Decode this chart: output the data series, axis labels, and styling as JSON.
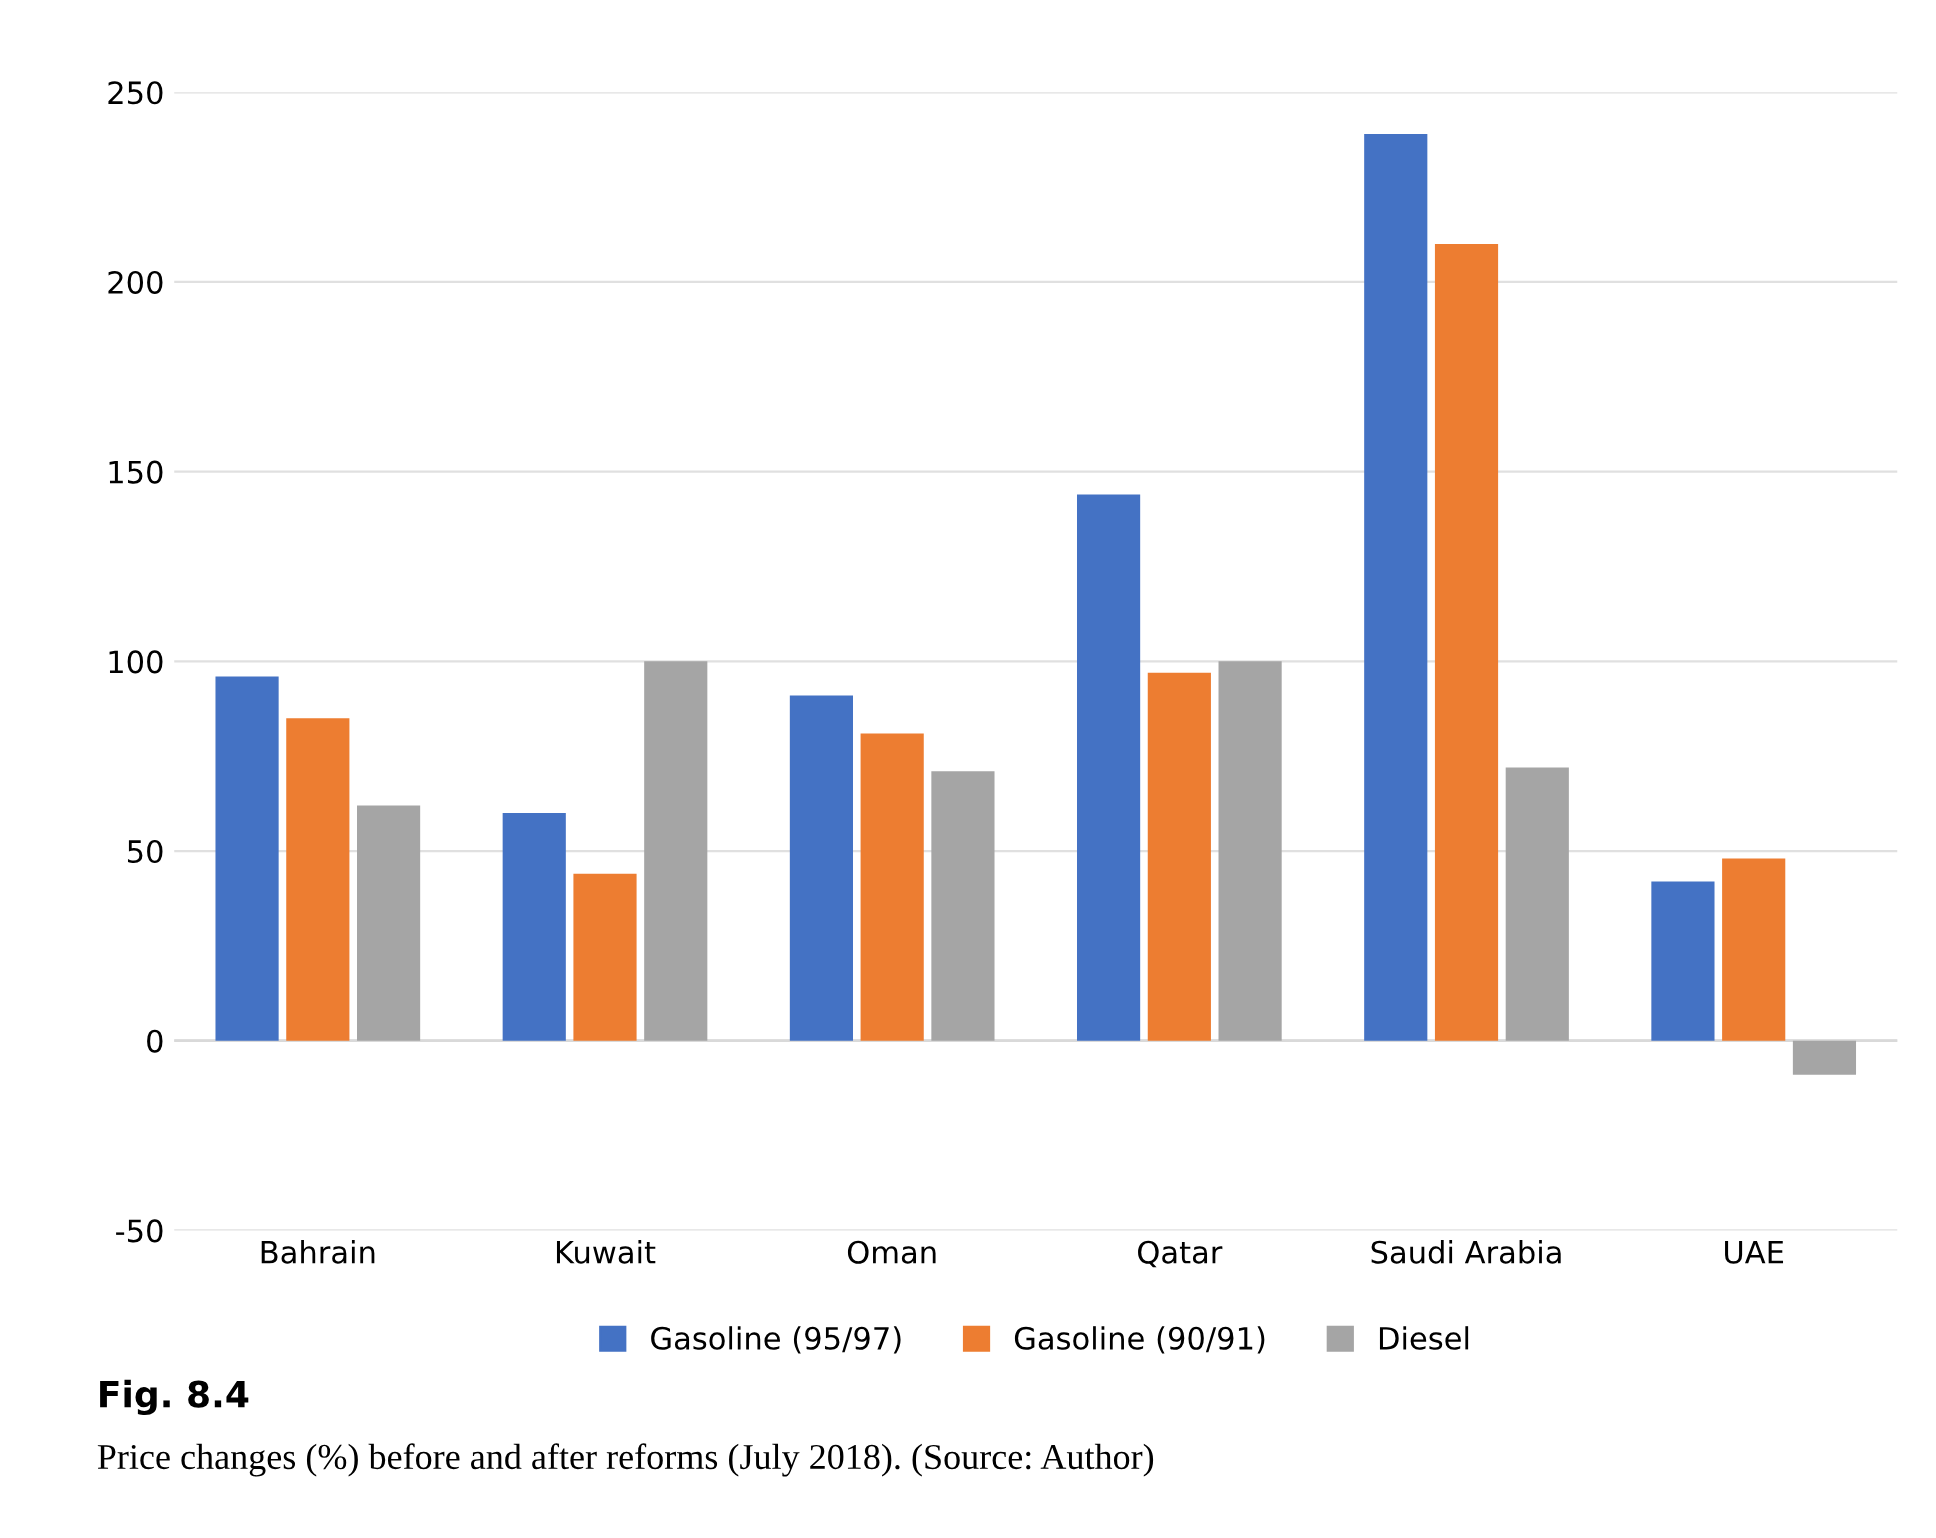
{
  "chart_data": {
    "type": "bar",
    "categories": [
      "Bahrain",
      "Kuwait",
      "Oman",
      "Qatar",
      "Saudi Arabia",
      "UAE"
    ],
    "series": [
      {
        "name": "Gasoline (95/97)",
        "color": "#4472c4",
        "values": [
          96,
          60,
          91,
          144,
          239,
          42
        ]
      },
      {
        "name": "Gasoline (90/91)",
        "color": "#ed7d31",
        "values": [
          85,
          44,
          81,
          97,
          210,
          48
        ]
      },
      {
        "name": "Diesel",
        "color": "#a5a5a5",
        "values": [
          62,
          100,
          71,
          100,
          72,
          -9
        ]
      }
    ],
    "ylim": [
      -50,
      250
    ],
    "yticks": [
      -50,
      0,
      50,
      100,
      150,
      200,
      250
    ],
    "grid": "y",
    "legend": "bottom",
    "annotations": [
      "Fig. 8.4",
      "Price changes (%) before and after reforms (July 2018). (Source: Author)"
    ]
  }
}
